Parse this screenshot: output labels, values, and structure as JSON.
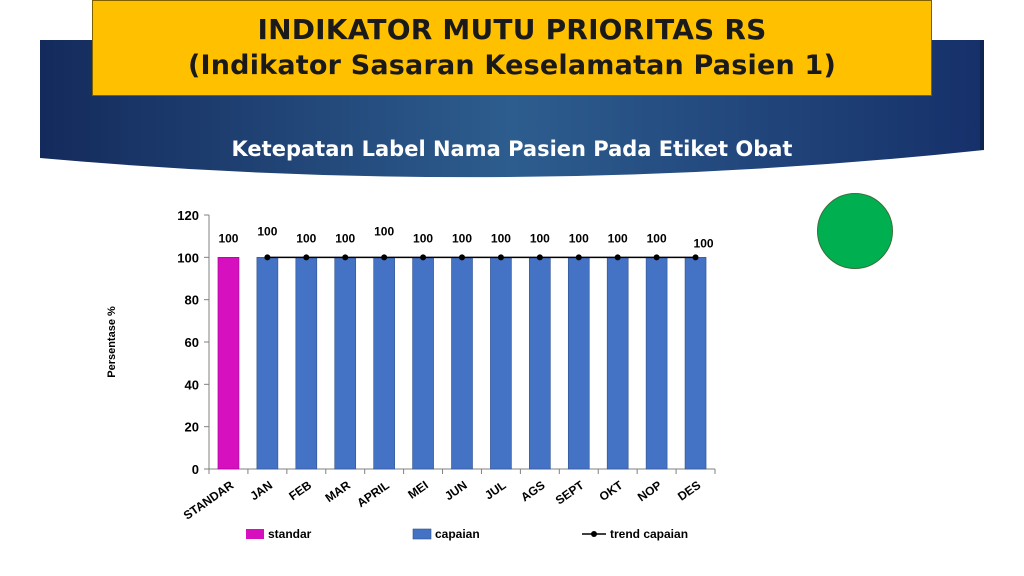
{
  "header": {
    "title_line1": "INDIKATOR MUTU PRIORITAS RS",
    "title_line2": "(Indikator Sasaran Keselamatan Pasien 1)",
    "subtitle": "Ketepatan Label Nama Pasien Pada Etiket Obat"
  },
  "status_indicator": {
    "color": "#00b050",
    "icon": "green-status-circle"
  },
  "chart_data": {
    "type": "bar",
    "ylabel": "Persentase %",
    "ylim": [
      0,
      120
    ],
    "yticks": [
      0,
      20,
      40,
      60,
      80,
      100,
      120
    ],
    "grid": false,
    "legend_position": "bottom",
    "categories": [
      "STANDAR",
      "JAN",
      "FEB",
      "MAR",
      "APRIL",
      "MEI",
      "JUN",
      "JUL",
      "AGS",
      "SEPT",
      "OKT",
      "NOP",
      "DES"
    ],
    "series": [
      {
        "name": "standar",
        "kind": "bar",
        "color": "#d60fbf",
        "values": [
          100,
          null,
          null,
          null,
          null,
          null,
          null,
          null,
          null,
          null,
          null,
          null,
          null
        ]
      },
      {
        "name": "capaian",
        "kind": "bar",
        "color": "#4472c4",
        "values": [
          null,
          100,
          100,
          100,
          100,
          100,
          100,
          100,
          100,
          100,
          100,
          100,
          100
        ]
      },
      {
        "name": "trend capaian",
        "kind": "line",
        "color": "#000000",
        "values": [
          null,
          100,
          100,
          100,
          100,
          100,
          100,
          100,
          100,
          100,
          100,
          100,
          100
        ]
      }
    ],
    "data_labels": [
      "100",
      "100",
      "100",
      "100",
      "100",
      "100",
      "100",
      "100",
      "100",
      "100",
      "100",
      "100",
      "100"
    ]
  }
}
